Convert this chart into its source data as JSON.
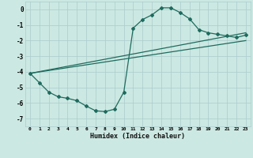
{
  "xlabel": "Humidex (Indice chaleur)",
  "bg_color": "#cce8e2",
  "grid_color": "#aacccc",
  "line_color": "#1e6b5e",
  "xlim": [
    -0.5,
    23.5
  ],
  "ylim": [
    -7.5,
    0.5
  ],
  "yticks": [
    0,
    -1,
    -2,
    -3,
    -4,
    -5,
    -6,
    -7
  ],
  "xticks": [
    0,
    1,
    2,
    3,
    4,
    5,
    6,
    7,
    8,
    9,
    10,
    11,
    12,
    13,
    14,
    15,
    16,
    17,
    18,
    19,
    20,
    21,
    22,
    23
  ],
  "series": [
    {
      "x": [
        0,
        1,
        2,
        3,
        4,
        5,
        6,
        7,
        8,
        9,
        10,
        11,
        12,
        13,
        14,
        15,
        16,
        17,
        18,
        19,
        20,
        21,
        22,
        23
      ],
      "y": [
        -4.1,
        -4.7,
        -5.3,
        -5.6,
        -5.7,
        -5.85,
        -6.2,
        -6.5,
        -6.55,
        -6.4,
        -5.3,
        -1.2,
        -0.65,
        -0.35,
        0.1,
        0.1,
        -0.2,
        -0.6,
        -1.3,
        -1.5,
        -1.6,
        -1.7,
        -1.8,
        -1.65
      ],
      "marker": "D",
      "markersize": 2.0,
      "linewidth": 0.9
    },
    {
      "x": [
        0,
        23
      ],
      "y": [
        -4.1,
        -1.65
      ],
      "marker": null,
      "linewidth": 0.9
    },
    {
      "x": [
        0,
        23
      ],
      "y": [
        -4.1,
        -1.65
      ],
      "marker": null,
      "linewidth": 0.9,
      "offset": true
    }
  ],
  "line2": {
    "x": [
      0,
      23
    ],
    "y": [
      -4.1,
      -1.65
    ]
  },
  "line3": {
    "x": [
      0,
      23
    ],
    "y": [
      -4.1,
      -1.65
    ]
  }
}
